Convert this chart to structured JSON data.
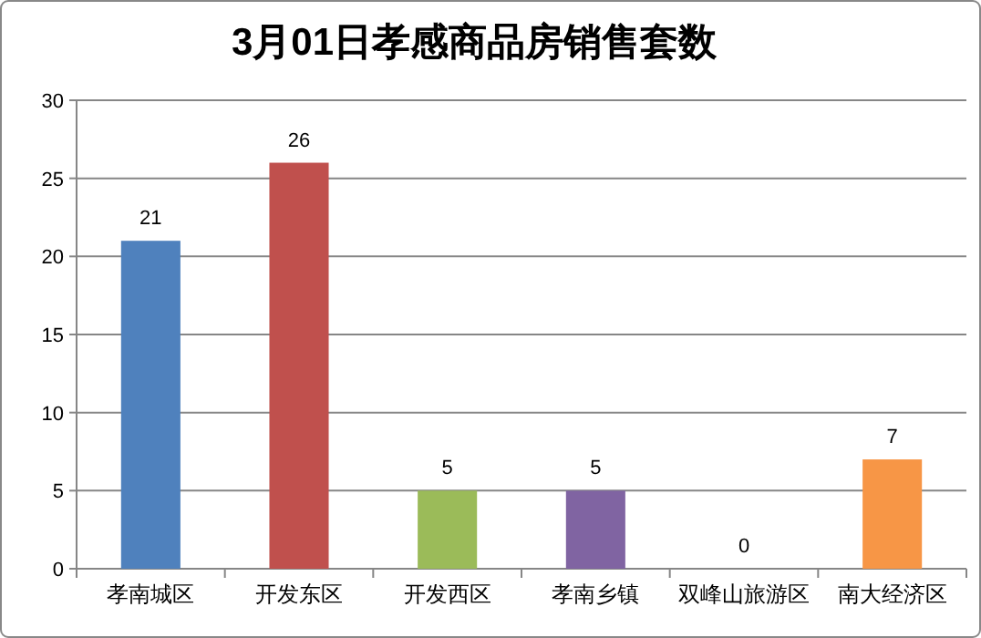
{
  "chart_data": {
    "type": "bar",
    "title": "3月01日孝感商品房销售套数",
    "categories": [
      "孝南城区",
      "开发东区",
      "开发西区",
      "孝南乡镇",
      "双峰山旅游区",
      "南大经济区"
    ],
    "values": [
      21,
      26,
      5,
      5,
      0,
      7
    ],
    "colors": [
      "#4f81bd",
      "#c0504d",
      "#9bbb59",
      "#8064a2",
      "#4bacc6",
      "#f79646"
    ],
    "ylim": [
      0,
      30
    ],
    "yticks": [
      0,
      5,
      10,
      15,
      20,
      25,
      30
    ],
    "grid": "y",
    "data_labels": true
  }
}
